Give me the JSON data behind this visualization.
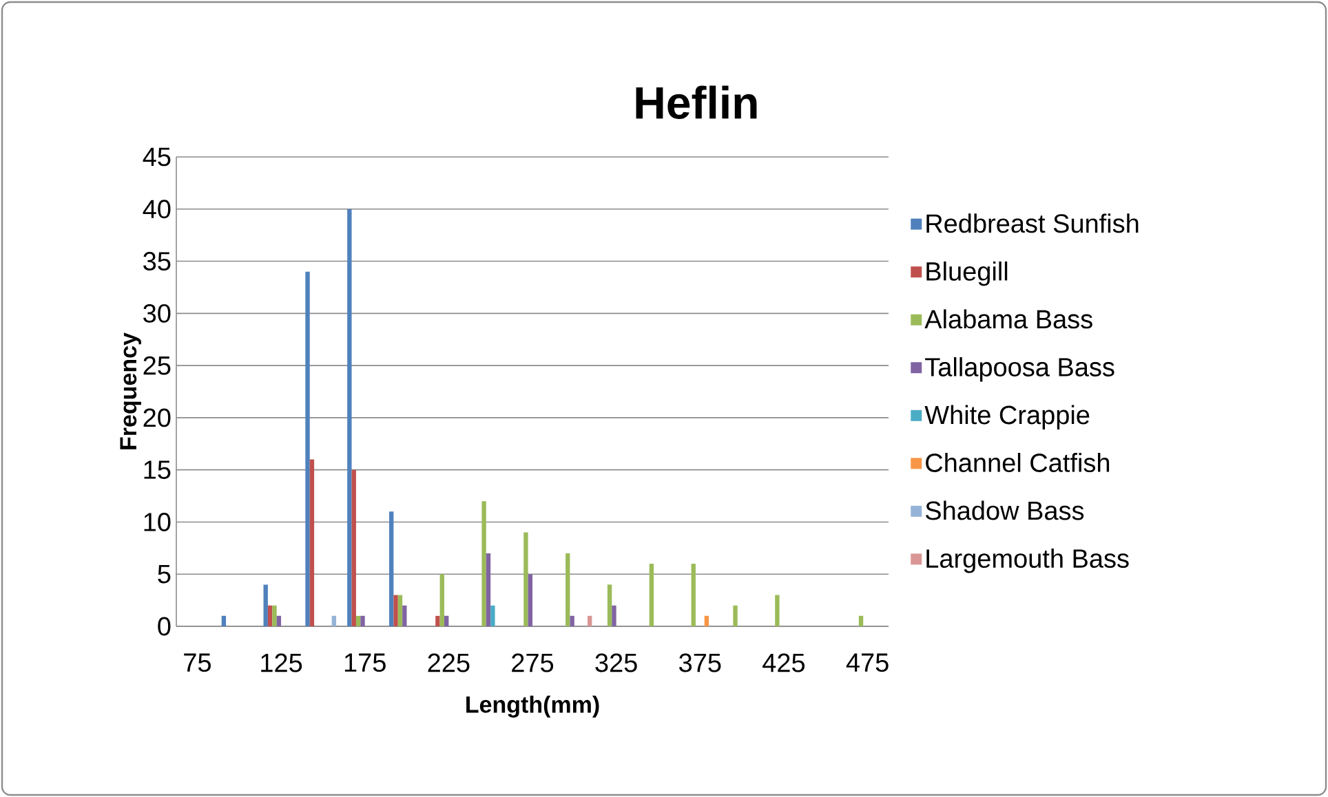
{
  "chart_data": {
    "type": "bar",
    "title": "Heflin",
    "xlabel": "Length(mm)",
    "ylabel": "Frequency",
    "categories": [
      "75",
      null,
      "125",
      null,
      "175",
      null,
      "225",
      null,
      "275",
      null,
      "325",
      null,
      "375",
      null,
      "425",
      null,
      "475"
    ],
    "series": [
      {
        "name": "Redbreast Sunfish",
        "color": "#4f81bd",
        "values": [
          0,
          1,
          4,
          34,
          40,
          11,
          0,
          0,
          0,
          0,
          0,
          0,
          0,
          0,
          0,
          0,
          0
        ]
      },
      {
        "name": "Bluegill",
        "color": "#c0504d",
        "values": [
          0,
          0,
          2,
          16,
          15,
          3,
          1,
          0,
          0,
          0,
          0,
          0,
          0,
          0,
          0,
          0,
          0
        ]
      },
      {
        "name": "Alabama Bass",
        "color": "#9bbb59",
        "values": [
          0,
          0,
          2,
          0,
          1,
          3,
          5,
          12,
          9,
          7,
          4,
          6,
          6,
          2,
          3,
          0,
          1
        ]
      },
      {
        "name": "Tallapoosa Bass",
        "color": "#8064a2",
        "values": [
          0,
          0,
          1,
          0,
          1,
          2,
          1,
          7,
          5,
          1,
          2,
          0,
          0,
          0,
          0,
          0,
          0
        ]
      },
      {
        "name": "White Crappie",
        "color": "#4bacc6",
        "values": [
          0,
          0,
          0,
          0,
          0,
          0,
          0,
          2,
          0,
          0,
          0,
          0,
          0,
          0,
          0,
          0,
          0
        ]
      },
      {
        "name": "Channel Catfish",
        "color": "#f79646",
        "values": [
          0,
          0,
          0,
          0,
          0,
          0,
          0,
          0,
          0,
          0,
          0,
          0,
          1,
          0,
          0,
          0,
          0
        ]
      },
      {
        "name": "Shadow Bass",
        "color": "#95b3d7",
        "values": [
          0,
          0,
          0,
          1,
          0,
          0,
          0,
          0,
          0,
          0,
          0,
          0,
          0,
          0,
          0,
          0,
          0
        ]
      },
      {
        "name": "Largemouth Bass",
        "color": "#d99694",
        "values": [
          0,
          0,
          0,
          0,
          0,
          0,
          0,
          0,
          0,
          1,
          0,
          0,
          0,
          0,
          0,
          0,
          0
        ]
      }
    ],
    "ylim": [
      0,
      45
    ],
    "yticks": [
      0,
      5,
      10,
      15,
      20,
      25,
      30,
      35,
      40,
      45
    ],
    "grid": "y",
    "legend": "right"
  }
}
